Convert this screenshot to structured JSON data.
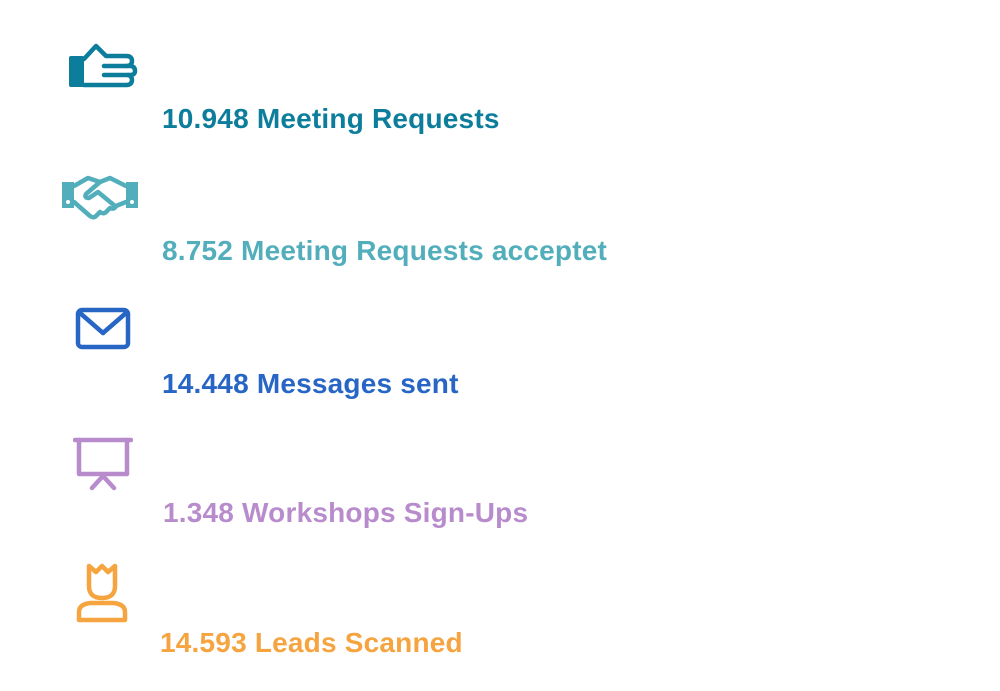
{
  "stats": [
    {
      "icon": "pointing-hand-icon",
      "text": "10.948 Meeting Requests",
      "color": "#0d7d9c"
    },
    {
      "icon": "handshake-icon",
      "text": "8.752 Meeting Requests acceptet",
      "color": "#53aebb"
    },
    {
      "icon": "envelope-icon",
      "text": "14.448 Messages sent",
      "color": "#2766c4"
    },
    {
      "icon": "presentation-board-icon",
      "text": "1.348 Workshops Sign-Ups",
      "color": "#b88ccc"
    },
    {
      "icon": "crowned-person-icon",
      "text": "14.593 Leads Scanned",
      "color": "#f5a440"
    }
  ]
}
